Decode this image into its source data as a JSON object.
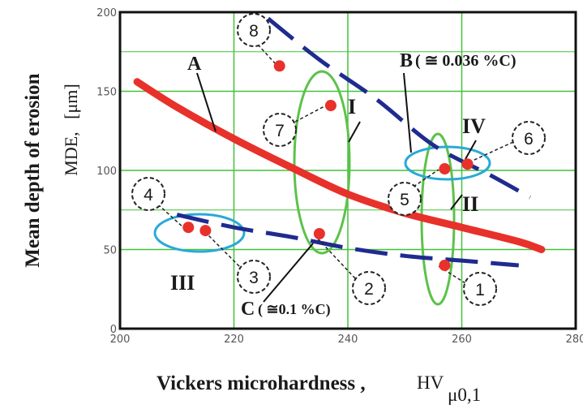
{
  "chart_data": {
    "type": "scatter",
    "xlabel": "Vickers microhardness ,",
    "xlabel_symbol": "HV",
    "xlabel_subscript": "μ0,1",
    "ylabel": "Mean depth of erosion",
    "ylabel_symbol": "MDE,",
    "ylabel_unit": "[μm]",
    "xlim": [
      200,
      280
    ],
    "ylim": [
      0,
      200
    ],
    "x_ticks": [
      "200",
      "220",
      "240",
      "260",
      "280"
    ],
    "y_ticks": [
      "0",
      "50",
      "100",
      "150",
      "200"
    ],
    "grid": true,
    "colors": {
      "curve": "#e8312a",
      "dashed": "#1f2b8f",
      "ellipse_green": "#5cc24a",
      "ellipse_blue": "#2aa9d8",
      "point": "#e8312a",
      "grid": "#44c23a"
    },
    "points": [
      {
        "label": "1",
        "x": 257,
        "y": 40
      },
      {
        "label": "2",
        "x": 235,
        "y": 60
      },
      {
        "label": "3",
        "x": 215,
        "y": 62
      },
      {
        "label": "4",
        "x": 212,
        "y": 64
      },
      {
        "label": "5",
        "x": 257,
        "y": 101
      },
      {
        "label": "6",
        "x": 261,
        "y": 104
      },
      {
        "label": "7",
        "x": 237,
        "y": 141
      },
      {
        "label": "8",
        "x": 228,
        "y": 166
      }
    ],
    "curve_A": {
      "x": [
        203,
        210,
        220,
        230,
        240,
        250,
        260,
        270,
        274
      ],
      "y": [
        156,
        140,
        120,
        102,
        85,
        73,
        64,
        55,
        50
      ]
    },
    "line_B": {
      "x": [
        226,
        235,
        245,
        255,
        265,
        272
      ],
      "y": [
        196,
        170,
        145,
        116,
        97,
        83
      ]
    },
    "line_C": {
      "x": [
        210,
        220,
        230,
        240,
        250,
        260,
        270
      ],
      "y": [
        72,
        64,
        58,
        51,
        46,
        43,
        40
      ]
    },
    "ellipse_labels": [
      "I",
      "II",
      "III",
      "IV"
    ],
    "curve_labels": {
      "A": "A",
      "B": "B",
      "B_note": "( ≅ 0.036 %C)",
      "C": "C",
      "C_note": "( ≅0.1 %C)"
    }
  }
}
